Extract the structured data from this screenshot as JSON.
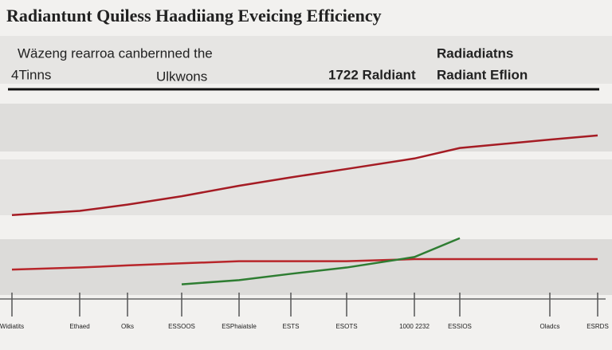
{
  "chart_data": {
    "type": "line",
    "title": "Radiantunt Quiless Haadiiang Eveicing Efficiency",
    "annotations": [
      "Wäzeng rearroa canbernned the",
      "4Tinns",
      "Ulkwons"
    ],
    "categories": [
      "Widiatits",
      "Ethaed",
      "Olks",
      "ESSOOS",
      "ESPhaiatsle",
      "ESTS",
      "ESOTS",
      "1000 2232",
      "ESSIOS",
      "Oladcs",
      "ESRDS"
    ],
    "series": [
      {
        "name": "1722 Raldiant",
        "color": "#a51c24",
        "values": [
          40,
          42,
          45,
          49,
          54,
          58,
          62,
          67,
          72,
          76,
          78
        ]
      },
      {
        "name": "Radiadiatns",
        "color": "#b8262b",
        "values": [
          14,
          15,
          16,
          17,
          18,
          18,
          18,
          19,
          19,
          19,
          19
        ]
      },
      {
        "name": "Radiant Eflion",
        "color": "#2e7d32",
        "values": [
          null,
          null,
          null,
          7,
          9,
          12,
          15,
          20,
          29,
          null,
          null
        ]
      }
    ],
    "ylim": [
      0,
      100
    ]
  }
}
